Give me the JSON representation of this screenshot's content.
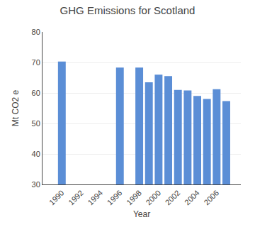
{
  "chart_data": {
    "type": "bar",
    "title": "GHG Emissions for Scotland",
    "xlabel": "Year",
    "ylabel": "Mt CO2 e",
    "x": [
      1990,
      1996,
      1998,
      1999,
      2000,
      2001,
      2002,
      2003,
      2004,
      2005,
      2006,
      2007
    ],
    "values": [
      70.3,
      68.3,
      68.3,
      63.5,
      66.0,
      65.5,
      61.0,
      60.8,
      59.0,
      58.0,
      61.2,
      57.3
    ],
    "color": "#5b8ed6",
    "xlim": [
      1988.0,
      2008.5
    ],
    "xticks": [
      1990,
      1992,
      1994,
      1996,
      1998,
      2000,
      2002,
      2004,
      2006
    ],
    "ylim": [
      30,
      80
    ],
    "yticks": [
      30,
      40,
      50,
      60,
      70,
      80
    ],
    "grid": "y"
  }
}
